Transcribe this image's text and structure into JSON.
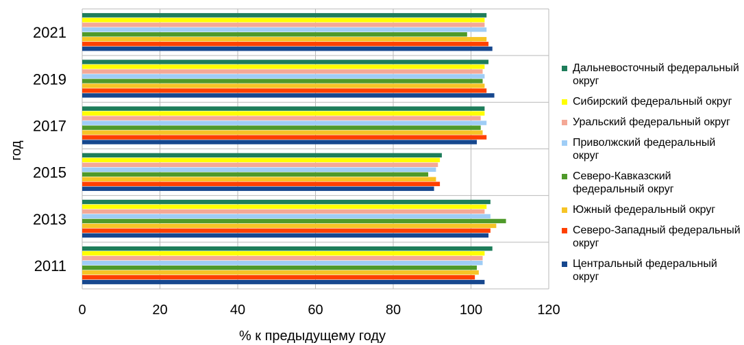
{
  "chart_data": {
    "type": "bar",
    "orientation": "horizontal",
    "title": "",
    "xlabel": "% к предыдущему году",
    "ylabel": "год",
    "xlim": [
      0,
      120
    ],
    "x_ticks": [
      0,
      20,
      40,
      60,
      80,
      100,
      120
    ],
    "grid": "vertical",
    "legend_position": "right",
    "categories": [
      "2021",
      "2019",
      "2017",
      "2015",
      "2013",
      "2011"
    ],
    "series": [
      {
        "name": "Дальневосточный федеральный округ",
        "color": "#1e7d5a",
        "values": [
          104,
          104.5,
          103.5,
          92.5,
          105,
          105.5
        ]
      },
      {
        "name": "Сибирский федеральный округ",
        "color": "#ffff00",
        "values": [
          103.5,
          103.5,
          103.5,
          92,
          104,
          103.5
        ]
      },
      {
        "name": "Уральский федеральный округ",
        "color": "#f4a896",
        "values": [
          103.5,
          103,
          102.5,
          91.5,
          103.5,
          103
        ]
      },
      {
        "name": "Приволжский федеральный округ",
        "color": "#9fcdf6",
        "values": [
          104,
          103.5,
          104,
          91,
          105,
          103
        ]
      },
      {
        "name": "Северо-Кавказский федеральный округ",
        "color": "#4f9a2a",
        "values": [
          99,
          103,
          102.5,
          89,
          109,
          101.5
        ]
      },
      {
        "name": "Южный федеральный округ",
        "color": "#f6c426",
        "values": [
          104,
          103.5,
          103,
          91,
          106.5,
          102
        ]
      },
      {
        "name": "Северо-Западный федеральный округ",
        "color": "#ff4000",
        "values": [
          104.5,
          104,
          104,
          92,
          105,
          101
        ]
      },
      {
        "name": "Центральный федеральный округ",
        "color": "#16478e",
        "values": [
          105.5,
          106,
          101.5,
          90.5,
          104.5,
          103.5
        ]
      }
    ]
  }
}
